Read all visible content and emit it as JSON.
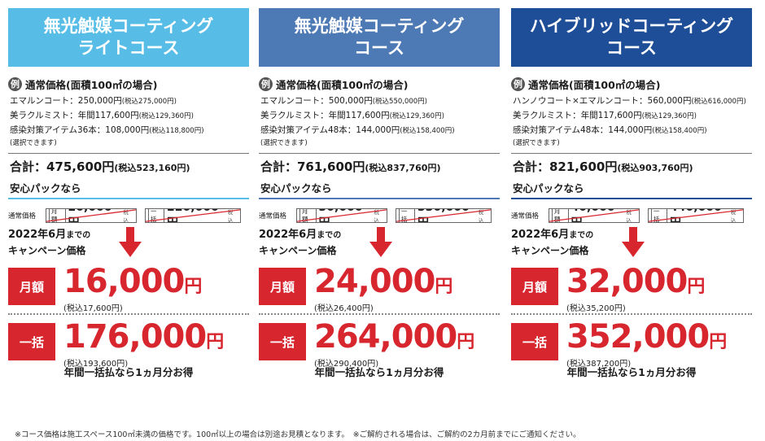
{
  "columns": [
    {
      "title": "無光触媒コーティング\nライトコース",
      "example_badge": "例",
      "example_label": "通常価格(面積100㎡の場合)",
      "lines": [
        {
          "text": "エマルンコート：250,000円",
          "tax": "(税込275,000円)"
        },
        {
          "text": "美ラクルミスト：年間117,600円",
          "tax": "(税込129,360円)"
        },
        {
          "text": "感染対策アイテム36本：108,000円",
          "tax": "(税込118,800円)"
        }
      ],
      "selectable_note": "(選択できます)",
      "total": "合計：475,600円",
      "total_tax": "(税込523,160円)",
      "pack_label": "安心パックなら",
      "regular_label": "通常価格",
      "monthly_tag": "月額",
      "monthly_regular": "20,000円",
      "lump_tag": "一括",
      "lump_regular": "220,000円",
      "regular_tax_tag": "税込",
      "campaign_line1_main": "2022年6月",
      "campaign_line1_sub": "までの",
      "campaign_line2": "キャンペーン価格",
      "monthly_box": "月額",
      "monthly_price": "16,000",
      "monthly_yen": "円",
      "monthly_tax": "(税込17,600円)",
      "lump_box": "一括",
      "lump_price": "176,000",
      "lump_yen": "円",
      "lump_tax": "(税込193,600円)",
      "bonus": "年間一括払なら1ヵ月分お得"
    },
    {
      "title": "無光触媒コーティング\nコース",
      "example_badge": "例",
      "example_label": "通常価格(面積100㎡の場合)",
      "lines": [
        {
          "text": "エマルンコート：500,000円",
          "tax": "(税込550,000円)"
        },
        {
          "text": "美ラクルミスト：年間117,600円",
          "tax": "(税込129,360円)"
        },
        {
          "text": "感染対策アイテム48本：144,000円",
          "tax": "(税込158,400円)"
        }
      ],
      "selectable_note": "(選択できます)",
      "total": "合計：761,600円",
      "total_tax": "(税込837,760円)",
      "pack_label": "安心パックなら",
      "regular_label": "通常価格",
      "monthly_tag": "月額",
      "monthly_regular": "30,000円",
      "lump_tag": "一括",
      "lump_regular": "330,000円",
      "regular_tax_tag": "税込",
      "campaign_line1_main": "2022年6月",
      "campaign_line1_sub": "までの",
      "campaign_line2": "キャンペーン価格",
      "monthly_box": "月額",
      "monthly_price": "24,000",
      "monthly_yen": "円",
      "monthly_tax": "(税込26,400円)",
      "lump_box": "一括",
      "lump_price": "264,000",
      "lump_yen": "円",
      "lump_tax": "(税込290,400円)",
      "bonus": "年間一括払なら1ヵ月分お得"
    },
    {
      "title": "ハイブリッドコーティング\nコース",
      "example_badge": "例",
      "example_label": "通常価格(面積100㎡の場合)",
      "lines": [
        {
          "text": "ハンノウコート×エマルンコート：560,000円",
          "tax": "(税込616,000円)"
        },
        {
          "text": "美ラクルミスト：年間117,600円",
          "tax": "(税込129,360円)"
        },
        {
          "text": "感染対策アイテム48本：144,000円",
          "tax": "(税込158,400円)"
        }
      ],
      "selectable_note": "(選択できます)",
      "total": "合計：821,600円",
      "total_tax": "(税込903,760円)",
      "pack_label": "安心パックなら",
      "regular_label": "通常価格",
      "monthly_tag": "月額",
      "monthly_regular": "40,000円",
      "lump_tag": "一括",
      "lump_regular": "440,000円",
      "regular_tax_tag": "税込",
      "campaign_line1_main": "2022年6月",
      "campaign_line1_sub": "までの",
      "campaign_line2": "キャンペーン価格",
      "monthly_box": "月額",
      "monthly_price": "32,000",
      "monthly_yen": "円",
      "monthly_tax": "(税込35,200円)",
      "lump_box": "一括",
      "lump_price": "352,000",
      "lump_yen": "円",
      "lump_tax": "(税込387,200円)",
      "bonus": "年間一括払なら1ヵ月分お得"
    }
  ],
  "footer": "※コース価格は施工スペース100㎡未満の価格です。100㎡以上の場合は別途お見積となります。　※ご解約される場合は、ご解約の2カ月前までにご通知ください。",
  "colors": {
    "light_course": "#57bde6",
    "standard_course": "#4d79b5",
    "hybrid_course": "#1e4e97",
    "campaign_red": "#d8262f"
  },
  "icons": {
    "arrow": "down-arrow-icon",
    "strike": "strikethrough-line"
  }
}
